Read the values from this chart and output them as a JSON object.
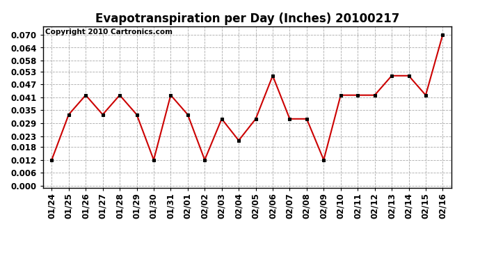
{
  "title": "Evapotranspiration per Day (Inches) 20100217",
  "copyright_text": "Copyright 2010 Cartronics.com",
  "x_labels": [
    "01/24",
    "01/25",
    "01/26",
    "01/27",
    "01/28",
    "01/29",
    "01/30",
    "01/31",
    "02/01",
    "02/02",
    "02/03",
    "02/04",
    "02/05",
    "02/06",
    "02/07",
    "02/08",
    "02/09",
    "02/10",
    "02/11",
    "02/12",
    "02/13",
    "02/14",
    "02/15",
    "02/16"
  ],
  "y_values": [
    0.012,
    0.033,
    0.042,
    0.033,
    0.042,
    0.033,
    0.012,
    0.042,
    0.033,
    0.012,
    0.031,
    0.021,
    0.031,
    0.051,
    0.031,
    0.031,
    0.012,
    0.042,
    0.042,
    0.042,
    0.051,
    0.051,
    0.042,
    0.07
  ],
  "line_color": "#cc0000",
  "marker_color": "#000000",
  "grid_color": "#aaaaaa",
  "background_color": "#ffffff",
  "ylim": [
    -0.001,
    0.074
  ],
  "yticks": [
    0.0,
    0.006,
    0.012,
    0.018,
    0.023,
    0.029,
    0.035,
    0.041,
    0.047,
    0.053,
    0.058,
    0.064,
    0.07
  ],
  "title_fontsize": 12,
  "tick_fontsize": 8.5,
  "copyright_fontsize": 7.5
}
